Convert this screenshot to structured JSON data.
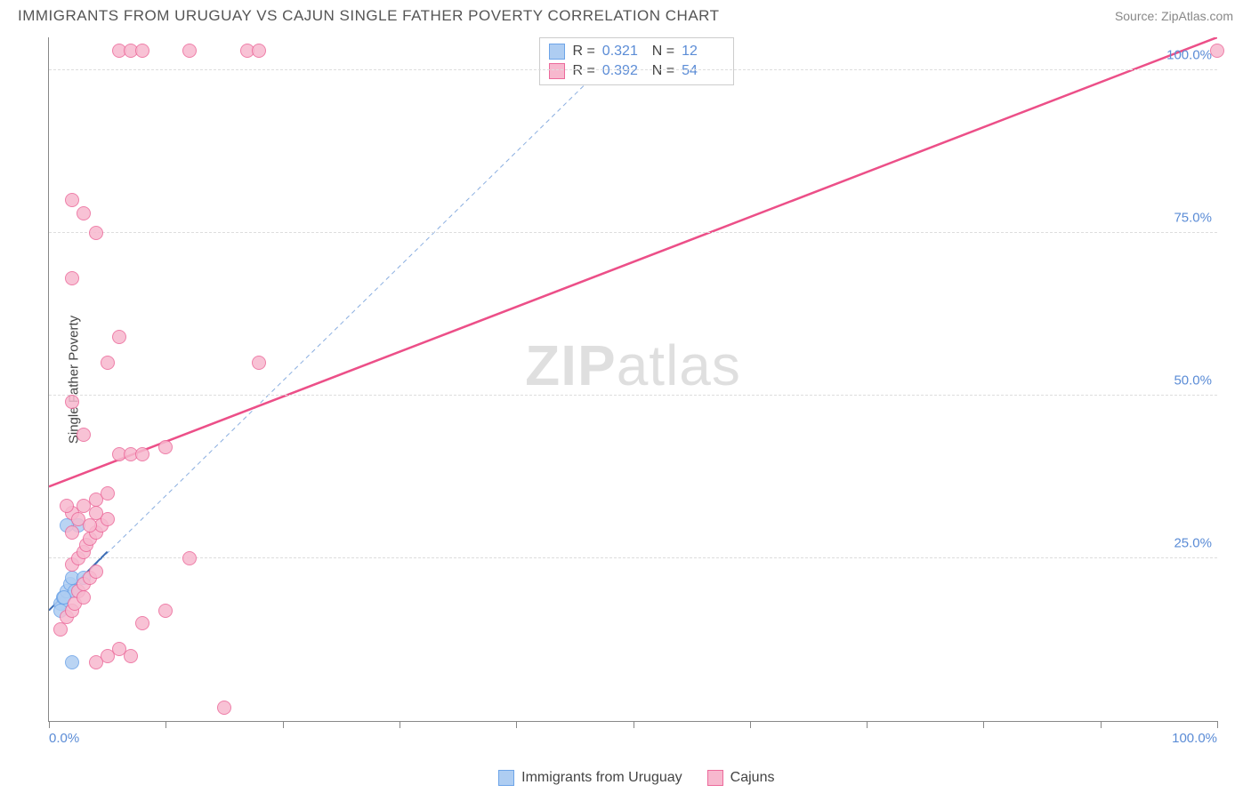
{
  "title": "IMMIGRANTS FROM URUGUAY VS CAJUN SINGLE FATHER POVERTY CORRELATION CHART",
  "source": "Source: ZipAtlas.com",
  "watermark": {
    "bold": "ZIP",
    "light": "atlas"
  },
  "chart": {
    "type": "scatter",
    "ylabel": "Single Father Poverty",
    "xlim": [
      0,
      100
    ],
    "ylim": [
      0,
      105
    ],
    "yticks": [
      25,
      50,
      75,
      100
    ],
    "ytick_labels": [
      "25.0%",
      "50.0%",
      "75.0%",
      "100.0%"
    ],
    "xticks": [
      0,
      10,
      20,
      30,
      40,
      50,
      60,
      70,
      80,
      90,
      100
    ],
    "xtick_labels_shown": {
      "0": "0.0%",
      "100": "100.0%"
    },
    "background_color": "#ffffff",
    "grid_color": "#dddddd",
    "axis_color": "#888888",
    "marker_radius": 8,
    "marker_stroke_width": 1.5,
    "marker_fill_opacity": 0.35,
    "series": [
      {
        "name": "Immigrants from Uruguay",
        "color_stroke": "#6da4e8",
        "color_fill": "#aecdf2",
        "r_value": "0.321",
        "n_value": "12",
        "trend": {
          "x1": 0,
          "y1": 17,
          "x2": 5,
          "y2": 26,
          "dashed": true,
          "extend_x2": 50,
          "extend_y2": 105,
          "width": 1,
          "color": "#8aaee0"
        },
        "points": [
          [
            1.0,
            18
          ],
          [
            1.2,
            19
          ],
          [
            1.5,
            20
          ],
          [
            1.8,
            21
          ],
          [
            2.0,
            22
          ],
          [
            2.2,
            20
          ],
          [
            2.5,
            30
          ],
          [
            3.0,
            22
          ],
          [
            1.0,
            17
          ],
          [
            1.3,
            19
          ],
          [
            2.0,
            9
          ],
          [
            1.5,
            30
          ]
        ]
      },
      {
        "name": "Cajuns",
        "color_stroke": "#ec6a9b",
        "color_fill": "#f7b8ce",
        "r_value": "0.392",
        "n_value": "54",
        "trend": {
          "x1": 0,
          "y1": 36,
          "x2": 100,
          "y2": 105,
          "dashed": false,
          "width": 2.5,
          "color": "#ec4f88"
        },
        "points": [
          [
            1,
            14
          ],
          [
            1.5,
            16
          ],
          [
            2,
            17
          ],
          [
            2.2,
            18
          ],
          [
            2.5,
            20
          ],
          [
            3,
            21
          ],
          [
            3.5,
            22
          ],
          [
            4,
            23
          ],
          [
            2,
            24
          ],
          [
            2.5,
            25
          ],
          [
            3,
            26
          ],
          [
            3.2,
            27
          ],
          [
            3.5,
            28
          ],
          [
            4,
            29
          ],
          [
            4.5,
            30
          ],
          [
            5,
            31
          ],
          [
            2,
            32
          ],
          [
            3,
            33
          ],
          [
            4,
            34
          ],
          [
            5,
            35
          ],
          [
            6,
            41
          ],
          [
            7,
            41
          ],
          [
            8,
            41
          ],
          [
            10,
            42
          ],
          [
            12,
            25
          ],
          [
            10,
            17
          ],
          [
            8,
            15
          ],
          [
            6,
            11
          ],
          [
            5,
            10
          ],
          [
            7,
            10
          ],
          [
            4,
            9
          ],
          [
            15,
            2
          ],
          [
            3,
            44
          ],
          [
            2,
            49
          ],
          [
            5,
            55
          ],
          [
            6,
            59
          ],
          [
            18,
            55
          ],
          [
            2,
            68
          ],
          [
            4,
            75
          ],
          [
            3,
            78
          ],
          [
            2,
            80
          ],
          [
            6,
            103
          ],
          [
            7,
            103
          ],
          [
            8,
            103
          ],
          [
            12,
            103
          ],
          [
            17,
            103
          ],
          [
            18,
            103
          ],
          [
            100,
            103
          ],
          [
            1.5,
            33
          ],
          [
            2,
            29
          ],
          [
            2.5,
            31
          ],
          [
            3.5,
            30
          ],
          [
            4,
            32
          ],
          [
            3,
            19
          ]
        ]
      }
    ]
  },
  "legend": {
    "stats_label_r": "R  =",
    "stats_label_n": "N  =",
    "bottom_items": [
      "Immigrants from Uruguay",
      "Cajuns"
    ]
  },
  "colors": {
    "title_text": "#555555",
    "source_text": "#888888",
    "tick_text": "#5b8cd6",
    "label_text": "#444444"
  },
  "fonts": {
    "title_size": 17,
    "tick_size": 15,
    "legend_size": 16,
    "ylabel_size": 15
  }
}
